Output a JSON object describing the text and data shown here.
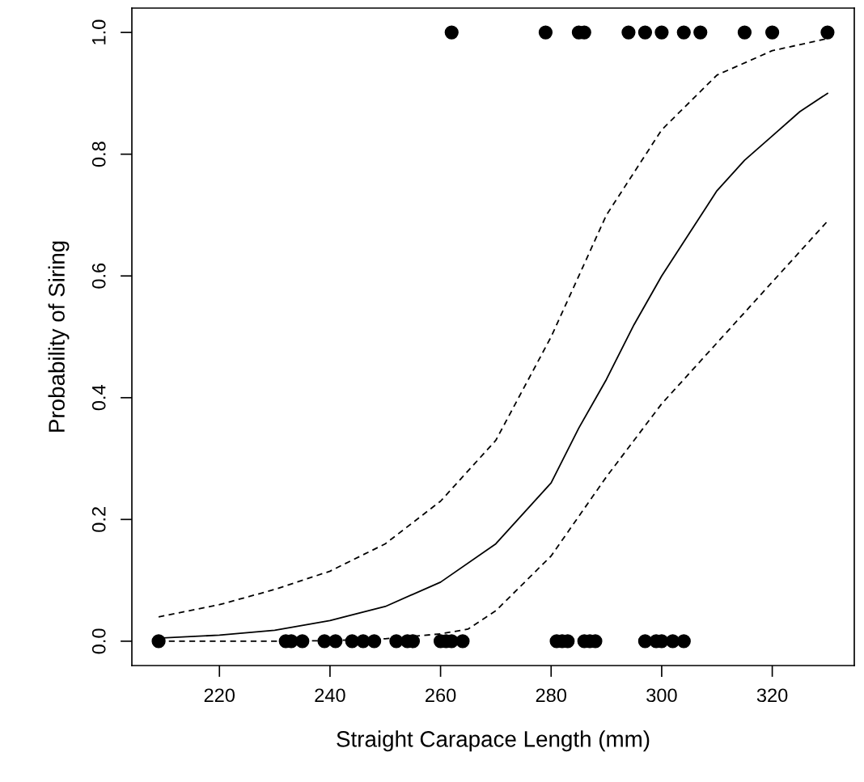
{
  "chart_data": {
    "type": "scatter",
    "xlabel": "Straight Carapace Length (mm)",
    "ylabel": "Probability of Siring",
    "xlim": [
      204.16,
      334.84
    ],
    "ylim": [
      -0.04,
      1.04
    ],
    "xticks": [
      220,
      240,
      260,
      280,
      300,
      320
    ],
    "yticks": [
      {
        "value": 0,
        "label": "0.0"
      },
      {
        "value": 0.2,
        "label": "0.2"
      },
      {
        "value": 0.4,
        "label": "0.4"
      },
      {
        "value": 0.6,
        "label": "0.6"
      },
      {
        "value": 0.8,
        "label": "0.8"
      },
      {
        "value": 1,
        "label": "1.0"
      }
    ],
    "grid": false,
    "legend": false,
    "series": [
      {
        "color": "#000000",
        "marker": "circle",
        "x": [
          262,
          279,
          285,
          286,
          294,
          297,
          300,
          304,
          307,
          315,
          320,
          330,
          209,
          232,
          233,
          235,
          239,
          241,
          244,
          246,
          248,
          252,
          254,
          255,
          260,
          261,
          262,
          264,
          281,
          282,
          283,
          286,
          287,
          288,
          297,
          299,
          300,
          302,
          304
        ],
        "values": [
          1,
          1,
          1,
          1,
          1,
          1,
          1,
          1,
          1,
          1,
          1,
          1,
          0,
          0,
          0,
          0,
          0,
          0,
          0,
          0,
          0,
          0,
          0,
          0,
          0,
          0,
          0,
          0,
          0,
          0,
          0,
          0,
          0,
          0,
          0,
          0,
          0,
          0,
          0
        ]
      },
      {
        "type": "line",
        "color": "#000000",
        "line_style": "solid",
        "x": [
          209,
          220,
          230,
          240,
          250,
          260,
          270,
          280,
          285,
          290,
          295,
          300,
          305,
          310,
          315,
          320,
          325,
          330
        ],
        "values": [
          0.005,
          0.01,
          0.018,
          0.034,
          0.057,
          0.097,
          0.16,
          0.26,
          0.35,
          0.43,
          0.52,
          0.6,
          0.67,
          0.74,
          0.79,
          0.83,
          0.87,
          0.9
        ]
      },
      {
        "type": "line",
        "color": "#000000",
        "line_style": "dashed",
        "x": [
          209,
          220,
          230,
          240,
          250,
          260,
          270,
          280,
          290,
          300,
          310,
          320,
          330
        ],
        "values": [
          0.04,
          0.06,
          0.085,
          0.115,
          0.16,
          0.23,
          0.33,
          0.5,
          0.7,
          0.84,
          0.93,
          0.97,
          0.99
        ]
      },
      {
        "type": "line",
        "color": "#000000",
        "line_style": "dashed",
        "x": [
          209,
          230,
          240,
          250,
          260,
          265,
          270,
          280,
          290,
          300,
          310,
          320,
          330
        ],
        "values": [
          0.0,
          0.0,
          0.001,
          0.004,
          0.012,
          0.02,
          0.05,
          0.14,
          0.27,
          0.39,
          0.49,
          0.59,
          0.69
        ]
      }
    ]
  }
}
